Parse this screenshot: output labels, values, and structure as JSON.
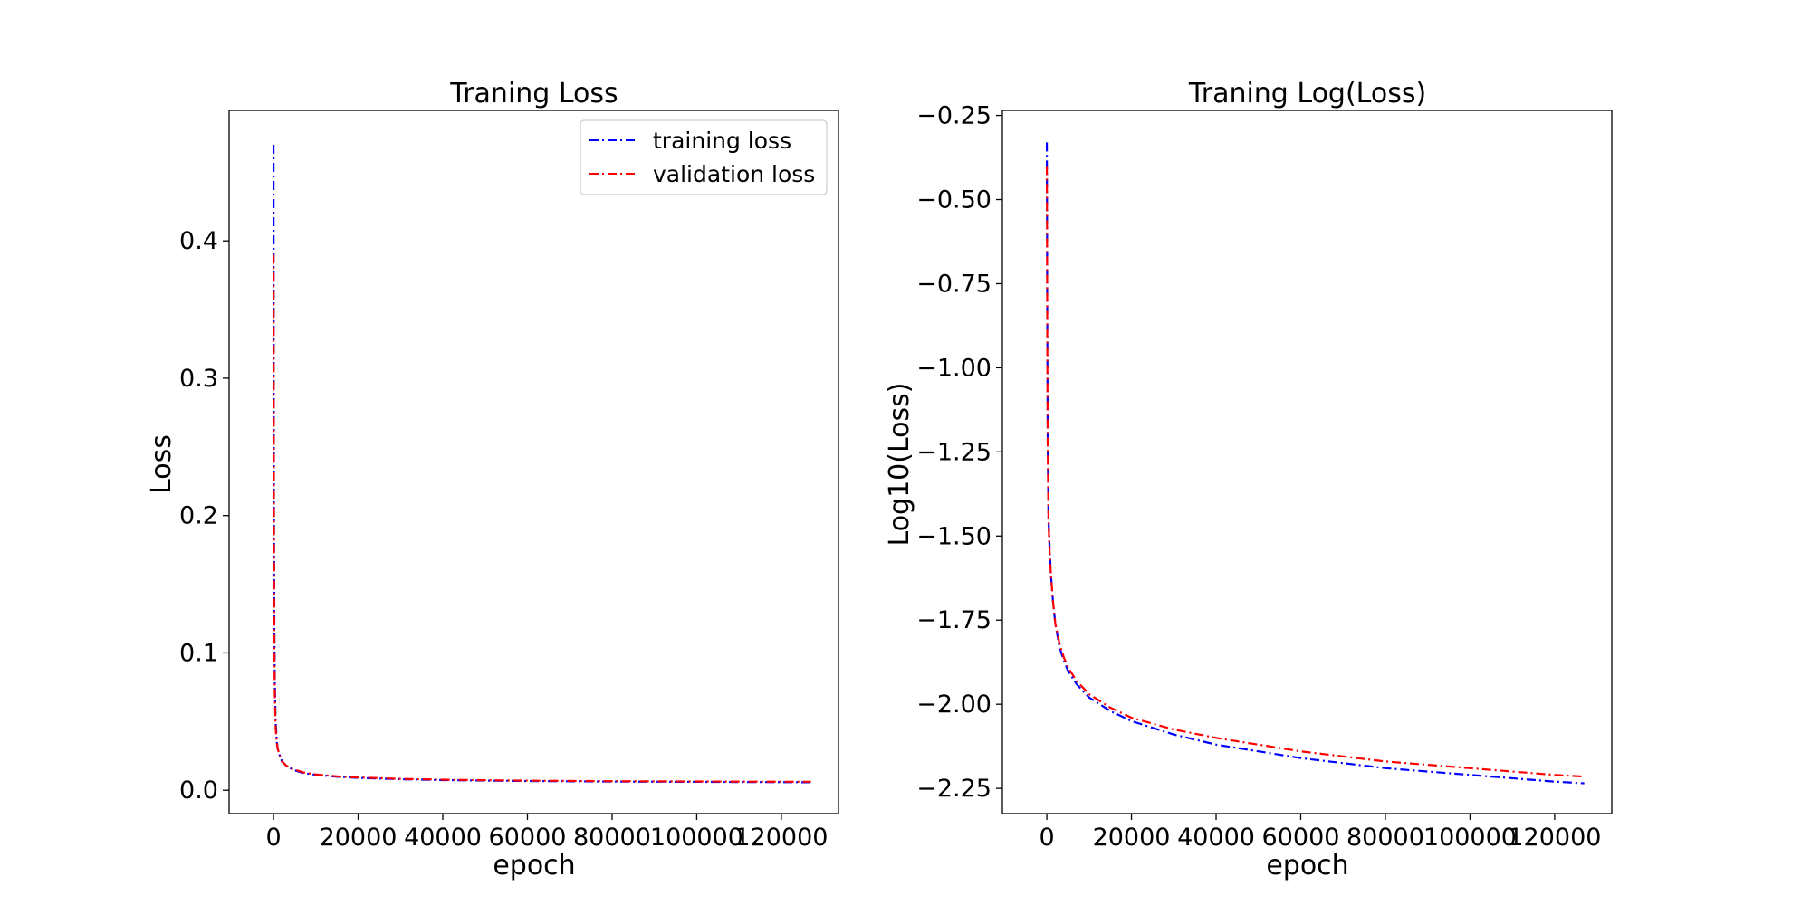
{
  "chart_data": [
    {
      "type": "line",
      "title": "Traning Loss",
      "xlabel": "epoch",
      "ylabel": "Loss",
      "xlim": [
        -10500,
        133500
      ],
      "ylim": [
        -0.017,
        0.495
      ],
      "xticks": [
        0,
        20000,
        40000,
        60000,
        80000,
        100000,
        120000
      ],
      "xtick_labels": [
        "0",
        "20000",
        "40000",
        "60000",
        "80000",
        "100000",
        "120000"
      ],
      "yticks": [
        0.0,
        0.1,
        0.2,
        0.3,
        0.4
      ],
      "ytick_labels": [
        "0.0",
        "0.1",
        "0.2",
        "0.3",
        "0.4"
      ],
      "grid": false,
      "legend": {
        "position": "top-right",
        "entries": [
          "training loss",
          "validation loss"
        ]
      },
      "series": [
        {
          "name": "training loss",
          "color": "#0000ff",
          "style": "dash-dot",
          "x": [
            0,
            50,
            100,
            200,
            300,
            500,
            800,
            1000,
            1500,
            2000,
            3000,
            4000,
            5000,
            7000,
            10000,
            15000,
            20000,
            30000,
            40000,
            50000,
            60000,
            70000,
            80000,
            90000,
            100000,
            110000,
            120000,
            127000
          ],
          "y": [
            0.47,
            0.3,
            0.2,
            0.12,
            0.08,
            0.05,
            0.035,
            0.03,
            0.025,
            0.021,
            0.018,
            0.016,
            0.0145,
            0.0125,
            0.0112,
            0.0098,
            0.009,
            0.008,
            0.0074,
            0.007,
            0.0067,
            0.0065,
            0.0063,
            0.0062,
            0.0061,
            0.006,
            0.0059,
            0.0058
          ]
        },
        {
          "name": "validation loss",
          "color": "#ff0000",
          "style": "dash-dot",
          "x": [
            0,
            50,
            100,
            200,
            300,
            500,
            800,
            1000,
            1500,
            2000,
            3000,
            4000,
            5000,
            7000,
            10000,
            15000,
            20000,
            30000,
            40000,
            50000,
            60000,
            70000,
            80000,
            90000,
            100000,
            110000,
            120000,
            127000
          ],
          "y": [
            0.39,
            0.25,
            0.17,
            0.1,
            0.07,
            0.045,
            0.034,
            0.03,
            0.025,
            0.021,
            0.018,
            0.016,
            0.015,
            0.013,
            0.0115,
            0.0101,
            0.0093,
            0.0083,
            0.0077,
            0.0073,
            0.007,
            0.0068,
            0.0066,
            0.0065,
            0.0064,
            0.0063,
            0.0062,
            0.0062
          ]
        }
      ]
    },
    {
      "type": "line",
      "title": "Traning Log(Loss)",
      "xlabel": "epoch",
      "ylabel": "Log10(Loss)",
      "xlim": [
        -10500,
        133500
      ],
      "ylim": [
        -2.325,
        -0.235
      ],
      "xticks": [
        0,
        20000,
        40000,
        60000,
        80000,
        100000,
        120000
      ],
      "xtick_labels": [
        "0",
        "20000",
        "40000",
        "60000",
        "80000",
        "100000",
        "120000"
      ],
      "yticks": [
        -0.25,
        -0.5,
        -0.75,
        -1.0,
        -1.25,
        -1.5,
        -1.75,
        -2.0,
        -2.25
      ],
      "ytick_labels": [
        "−0.25",
        "−0.50",
        "−0.75",
        "−1.00",
        "−1.25",
        "−1.50",
        "−1.75",
        "−2.00",
        "−2.25"
      ],
      "grid": false,
      "series": [
        {
          "name": "training loss",
          "color": "#0000ff",
          "style": "dash-dot",
          "x": [
            0,
            50,
            100,
            200,
            400,
            700,
            1000,
            1500,
            2000,
            3000,
            4000,
            5000,
            7000,
            10000,
            15000,
            20000,
            30000,
            40000,
            50000,
            60000,
            70000,
            80000,
            90000,
            100000,
            110000,
            120000,
            127000
          ],
          "y": [
            -0.33,
            -0.55,
            -0.85,
            -1.2,
            -1.45,
            -1.55,
            -1.62,
            -1.7,
            -1.76,
            -1.83,
            -1.87,
            -1.9,
            -1.94,
            -1.98,
            -2.02,
            -2.05,
            -2.09,
            -2.12,
            -2.14,
            -2.16,
            -2.175,
            -2.19,
            -2.2,
            -2.21,
            -2.22,
            -2.23,
            -2.235
          ]
        },
        {
          "name": "validation loss",
          "color": "#ff0000",
          "style": "dash-dot",
          "x": [
            0,
            50,
            100,
            200,
            400,
            700,
            1000,
            1500,
            2000,
            3000,
            4000,
            5000,
            7000,
            10000,
            15000,
            20000,
            30000,
            40000,
            50000,
            60000,
            70000,
            80000,
            90000,
            100000,
            110000,
            120000,
            127000
          ],
          "y": [
            -0.4,
            -0.6,
            -0.9,
            -1.22,
            -1.46,
            -1.56,
            -1.62,
            -1.7,
            -1.76,
            -1.82,
            -1.86,
            -1.89,
            -1.93,
            -1.97,
            -2.01,
            -2.04,
            -2.075,
            -2.1,
            -2.12,
            -2.14,
            -2.155,
            -2.17,
            -2.18,
            -2.19,
            -2.2,
            -2.21,
            -2.215
          ]
        }
      ]
    }
  ]
}
